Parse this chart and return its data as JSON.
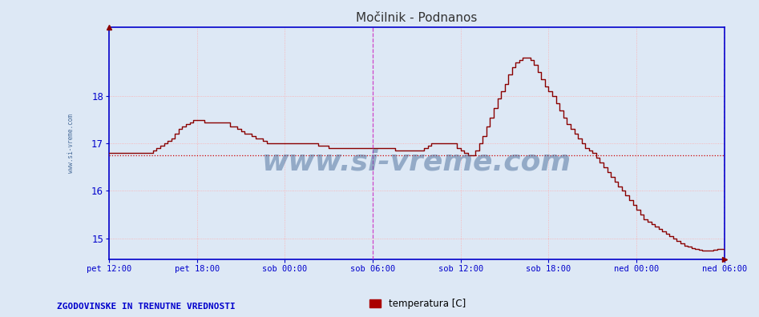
{
  "title": "Močilnik - Podnanos",
  "bg_color": "#dde8f5",
  "line_color": "#8b0000",
  "hline_color": "#cc0000",
  "hline_value": 16.75,
  "vline_color": "#cc44cc",
  "vline_x": [
    3,
    7
  ],
  "grid_color": "#ffaaaa",
  "axis_color": "#0000cc",
  "title_color": "#333333",
  "watermark_text": "www.si-vreme.com",
  "watermark_color": "#3a6090",
  "side_text": "www.si-vreme.com",
  "footer_text": "ZGODOVINSKE IN TRENUTNE VREDNOSTI",
  "legend_text": "temperatura [C]",
  "legend_color": "#aa0000",
  "ylim": [
    14.55,
    19.45
  ],
  "yticks": [
    15,
    16,
    17,
    18
  ],
  "xlim": [
    0,
    7
  ],
  "xtick_pos": [
    0,
    1,
    2,
    3,
    4,
    5,
    6,
    7
  ],
  "xtick_labels": [
    "pet 12:00",
    "pet 18:00",
    "sob 00:00",
    "sob 06:00",
    "sob 12:00",
    "sob 18:00",
    "ned 00:00",
    "ned 06:00"
  ],
  "temp_x": [
    0.0,
    0.042,
    0.083,
    0.125,
    0.167,
    0.208,
    0.25,
    0.292,
    0.333,
    0.375,
    0.417,
    0.458,
    0.5,
    0.542,
    0.583,
    0.625,
    0.667,
    0.708,
    0.75,
    0.792,
    0.833,
    0.875,
    0.917,
    0.958,
    1.0,
    1.042,
    1.083,
    1.125,
    1.167,
    1.208,
    1.25,
    1.292,
    1.333,
    1.375,
    1.417,
    1.458,
    1.5,
    1.542,
    1.583,
    1.625,
    1.667,
    1.708,
    1.75,
    1.792,
    1.833,
    1.875,
    1.917,
    1.958,
    2.0,
    2.042,
    2.083,
    2.125,
    2.167,
    2.208,
    2.25,
    2.292,
    2.333,
    2.375,
    2.417,
    2.458,
    2.5,
    2.542,
    2.583,
    2.625,
    2.667,
    2.708,
    2.75,
    2.792,
    2.833,
    2.875,
    2.917,
    2.958,
    3.0,
    3.042,
    3.083,
    3.125,
    3.167,
    3.208,
    3.25,
    3.292,
    3.333,
    3.375,
    3.417,
    3.458,
    3.5,
    3.542,
    3.583,
    3.625,
    3.667,
    3.708,
    3.75,
    3.792,
    3.833,
    3.875,
    3.917,
    3.958,
    4.0,
    4.042,
    4.083,
    4.125,
    4.167,
    4.208,
    4.25,
    4.292,
    4.333,
    4.375,
    4.417,
    4.458,
    4.5,
    4.542,
    4.583,
    4.625,
    4.667,
    4.708,
    4.75,
    4.792,
    4.833,
    4.875,
    4.917,
    4.958,
    5.0,
    5.042,
    5.083,
    5.125,
    5.167,
    5.208,
    5.25,
    5.292,
    5.333,
    5.375,
    5.417,
    5.458,
    5.5,
    5.542,
    5.583,
    5.625,
    5.667,
    5.708,
    5.75,
    5.792,
    5.833,
    5.875,
    5.917,
    5.958,
    6.0,
    6.042,
    6.083,
    6.125,
    6.167,
    6.208,
    6.25,
    6.292,
    6.333,
    6.375,
    6.417,
    6.458,
    6.5,
    6.542,
    6.583,
    6.625,
    6.667,
    6.708,
    6.75,
    6.792,
    6.833,
    6.875,
    6.917,
    6.958,
    7.0
  ],
  "temp_y": [
    16.8,
    16.8,
    16.8,
    16.8,
    16.8,
    16.8,
    16.8,
    16.8,
    16.8,
    16.8,
    16.8,
    16.8,
    16.85,
    16.9,
    16.95,
    17.0,
    17.05,
    17.1,
    17.2,
    17.3,
    17.35,
    17.4,
    17.45,
    17.5,
    17.5,
    17.5,
    17.45,
    17.45,
    17.45,
    17.45,
    17.45,
    17.45,
    17.45,
    17.35,
    17.35,
    17.3,
    17.25,
    17.2,
    17.2,
    17.15,
    17.1,
    17.1,
    17.05,
    17.0,
    17.0,
    17.0,
    17.0,
    17.0,
    17.0,
    17.0,
    17.0,
    17.0,
    17.0,
    17.0,
    17.0,
    17.0,
    17.0,
    16.95,
    16.95,
    16.95,
    16.9,
    16.9,
    16.9,
    16.9,
    16.9,
    16.9,
    16.9,
    16.9,
    16.9,
    16.9,
    16.9,
    16.9,
    16.9,
    16.9,
    16.9,
    16.9,
    16.9,
    16.9,
    16.85,
    16.85,
    16.85,
    16.85,
    16.85,
    16.85,
    16.85,
    16.85,
    16.9,
    16.95,
    17.0,
    17.0,
    17.0,
    17.0,
    17.0,
    17.0,
    17.0,
    16.9,
    16.85,
    16.8,
    16.75,
    16.75,
    16.85,
    17.0,
    17.15,
    17.35,
    17.55,
    17.75,
    17.95,
    18.1,
    18.25,
    18.45,
    18.6,
    18.7,
    18.75,
    18.8,
    18.8,
    18.75,
    18.65,
    18.5,
    18.35,
    18.2,
    18.1,
    18.0,
    17.85,
    17.7,
    17.55,
    17.4,
    17.3,
    17.2,
    17.1,
    17.0,
    16.9,
    16.85,
    16.8,
    16.7,
    16.6,
    16.5,
    16.4,
    16.3,
    16.2,
    16.1,
    16.0,
    15.9,
    15.8,
    15.7,
    15.6,
    15.5,
    15.4,
    15.35,
    15.3,
    15.25,
    15.2,
    15.15,
    15.1,
    15.05,
    15.0,
    14.95,
    14.9,
    14.85,
    14.82,
    14.8,
    14.78,
    14.76,
    14.75,
    14.74,
    14.75,
    14.76,
    14.77,
    14.78,
    14.7
  ]
}
